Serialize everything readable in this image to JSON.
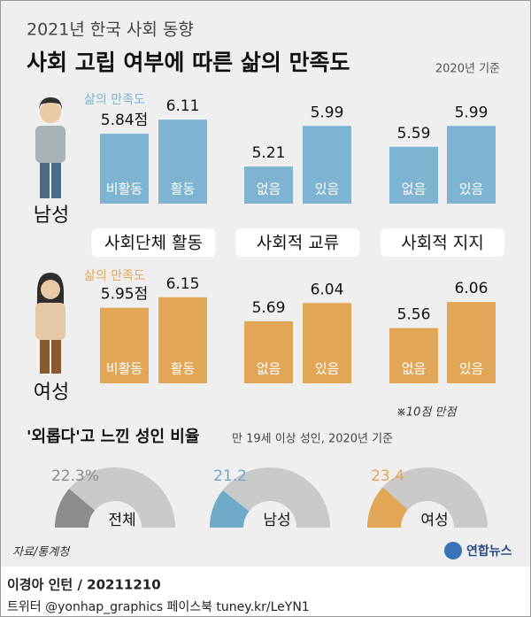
{
  "header": {
    "kicker": "2021년 한국 사회 동향",
    "title": "사회 고립 여부에 따른 삶의 만족도",
    "note": "2020년 기준"
  },
  "chart_data": [
    {
      "type": "bar",
      "title": "남성",
      "legend": "삶의 만족도",
      "color": "#7cb4d2",
      "ylim": [
        4.5,
        6.3
      ],
      "groups": [
        {
          "name": "사회단체 활동",
          "categories": [
            "비활동",
            "활동"
          ],
          "values": [
            5.84,
            6.11
          ],
          "value_labels": [
            "5.84점",
            "6.11"
          ]
        },
        {
          "name": "사회적 교류",
          "categories": [
            "없음",
            "있음"
          ],
          "values": [
            5.21,
            5.99
          ]
        },
        {
          "name": "사회적 지지",
          "categories": [
            "없음",
            "있음"
          ],
          "values": [
            5.59,
            5.99
          ]
        }
      ]
    },
    {
      "type": "bar",
      "title": "여성",
      "legend": "삶의 만족도",
      "color": "#e2a657",
      "ylim": [
        4.5,
        6.3
      ],
      "groups": [
        {
          "categories": [
            "비활동",
            "활동"
          ],
          "values": [
            5.95,
            6.15
          ],
          "value_labels": [
            "5.95점",
            "6.15"
          ]
        },
        {
          "categories": [
            "없음",
            "있음"
          ],
          "values": [
            5.69,
            6.04
          ]
        },
        {
          "categories": [
            "없음",
            "있음"
          ],
          "values": [
            5.56,
            6.06
          ]
        }
      ]
    },
    {
      "type": "gauge",
      "title": "'외롭다'고 느낀 성인 비율",
      "subtitle": "만 19세 이상 성인, 2020년 기준",
      "ylim": [
        0,
        100
      ],
      "track_color": "#c9c9c9",
      "series": [
        {
          "name": "전체",
          "color": "#8c8c8c",
          "values": [
            22.3
          ],
          "value_labels": [
            "22.3%"
          ]
        },
        {
          "name": "남성",
          "color": "#6fa9c8",
          "values": [
            21.2
          ]
        },
        {
          "name": "여성",
          "color": "#e2a657",
          "values": [
            23.4
          ]
        }
      ]
    }
  ],
  "footnote": "※10점 만점",
  "source": "자료/통계청",
  "logo": "연합뉴스",
  "credit": "이경아 인턴 / 20211210",
  "social": "트위터 @yonhap_graphics  페이스북 tuney.kr/LeYN1"
}
